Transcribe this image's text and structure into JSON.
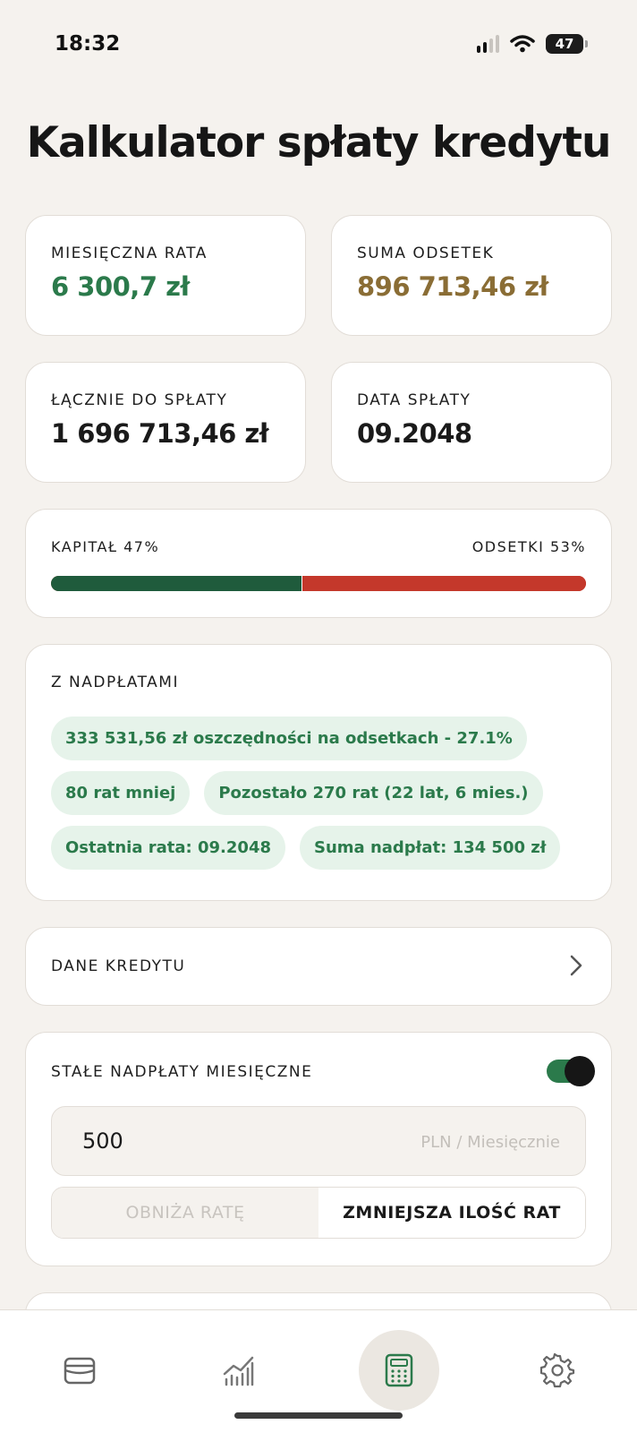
{
  "status_bar": {
    "time": "18:32",
    "battery": "47"
  },
  "title": "Kalkulator spłaty kredytu",
  "stats": {
    "monthly_rate": {
      "label": "MIESIĘCZNA RATA",
      "value": "6 300,7 zł"
    },
    "interest_sum": {
      "label": "SUMA ODSETEK",
      "value": "896 713,46 zł"
    },
    "total_repay": {
      "label": "ŁĄCZNIE DO SPŁATY",
      "value": "1 696 713,46 zł"
    },
    "payoff_date": {
      "label": "DATA SPŁATY",
      "value": "09.2048"
    }
  },
  "ratio": {
    "capital_label": "KAPITAŁ 47%",
    "interest_label": "ODSETKI 53%",
    "capital_percent": 47,
    "colors": {
      "capital": "#1f5b3c",
      "interest": "#c4382b"
    }
  },
  "overpayments": {
    "title": "Z NADPŁATAMI",
    "chips": [
      "333 531,56 zł oszczędności na odsetkach - 27.1%",
      "80 rat mniej",
      "Pozostało 270 rat (22 lat, 6 mies.)",
      "Ostatnia rata: 09.2048",
      "Suma nadpłat: 134 500 zł"
    ]
  },
  "loan_data": {
    "title": "DANE KREDYTU",
    "icon": "chevron-right-icon"
  },
  "monthly_overpayments": {
    "title": "STAŁE NADPŁATY MIESIĘCZNE",
    "enabled": true,
    "amount": "500",
    "unit": "PLN / Miesięcznie",
    "options": [
      "OBNIŻA RATĘ",
      "ZMNIEJSZA ILOŚĆ RAT"
    ],
    "selected_option": "ZMNIEJSZA ILOŚĆ RAT"
  },
  "nav": {
    "items": [
      "wallet-icon",
      "chart-icon",
      "calculator-icon",
      "gear-icon"
    ],
    "active": "calculator-icon"
  },
  "colors": {
    "accent_green": "#2b7a4b",
    "accent_gold": "#8a6d35",
    "background": "#f5f2ee"
  }
}
